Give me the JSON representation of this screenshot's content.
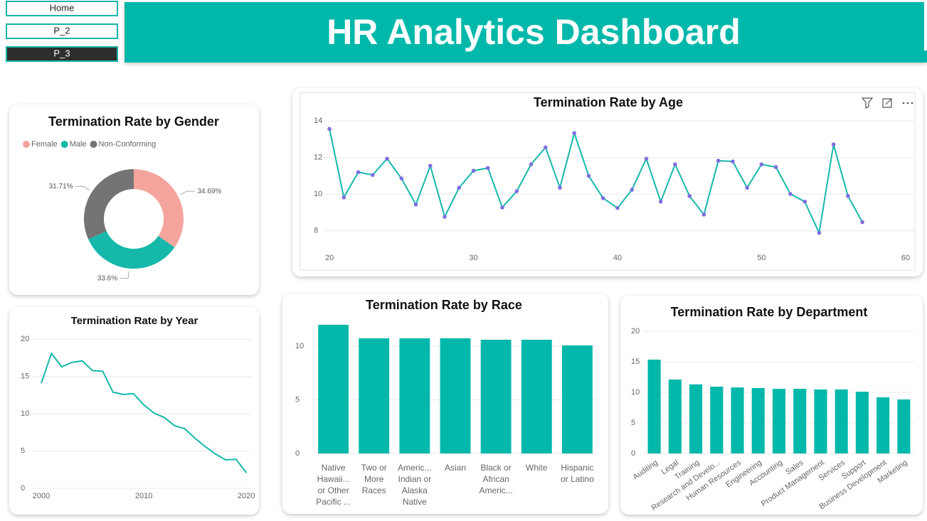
{
  "nav": [
    "Home",
    "P_2",
    "P_3"
  ],
  "header": {
    "title": "HR Analytics Dashboard"
  },
  "chart_data": [
    {
      "type": "pie",
      "title": "Termination Rate by Gender",
      "categories": [
        "Female",
        "Male",
        "Non-Conforming"
      ],
      "values": [
        34.69,
        33.6,
        31.71
      ],
      "value_labels": [
        "34.69%",
        "33.6%",
        "31.71%"
      ],
      "colors": [
        "#f4a49c",
        "#16b8aa",
        "#747474"
      ],
      "legend": "top-left",
      "donut": true
    },
    {
      "type": "line",
      "title": "Termination Rate by Age",
      "x": [
        20,
        21,
        22,
        23,
        24,
        25,
        26,
        27,
        28,
        29,
        30,
        31,
        32,
        33,
        34,
        35,
        36,
        37,
        38,
        39,
        40,
        41,
        42,
        43,
        44,
        45,
        46,
        47,
        48,
        49,
        50,
        51,
        52,
        53,
        54,
        55,
        56,
        57
      ],
      "values": [
        13.57,
        9.82,
        11.2,
        11.05,
        11.94,
        10.86,
        9.43,
        11.55,
        8.76,
        10.35,
        11.28,
        11.43,
        9.27,
        10.16,
        11.63,
        12.56,
        10.35,
        13.34,
        11.0,
        9.78,
        9.24,
        10.24,
        11.94,
        9.59,
        11.63,
        9.9,
        8.88,
        11.83,
        11.79,
        10.35,
        11.63,
        11.48,
        10.01,
        9.59,
        7.88,
        12.72,
        9.9,
        8.47
      ],
      "color": "#16b8aa",
      "markers": true,
      "marker_color": "#7f6fe0",
      "xlim": [
        19.6,
        60.6
      ],
      "xticks": [
        20,
        30,
        40,
        50,
        60
      ],
      "ylim": [
        7.4,
        14.4
      ],
      "yticks": [
        8,
        10,
        12,
        14
      ],
      "grid": true
    },
    {
      "type": "line",
      "title": "Termination Rate by Year",
      "x": [
        2000,
        2001,
        2002,
        2003,
        2004,
        2005,
        2006,
        2007,
        2008,
        2009,
        2010,
        2011,
        2012,
        2013,
        2014,
        2015,
        2016,
        2017,
        2018,
        2019,
        2020
      ],
      "values": [
        14.1,
        18.1,
        16.3,
        16.9,
        17.1,
        15.8,
        15.7,
        12.9,
        12.6,
        12.7,
        11.2,
        10.1,
        9.5,
        8.4,
        8.0,
        6.7,
        5.6,
        4.6,
        3.8,
        3.9,
        2.1
      ],
      "color": "#16b8aa",
      "markers": false,
      "xlim": [
        1999.1,
        2020.4
      ],
      "xticks": [
        2000,
        2010,
        2020
      ],
      "ylim": [
        0,
        20.7
      ],
      "yticks": [
        0,
        5,
        10,
        15,
        20
      ],
      "grid": true
    },
    {
      "type": "bar",
      "title": "Termination Rate by Race",
      "categories": [
        "Native Hawaii... or Other Pacific ...",
        "Two or More Races",
        "Americ... Indian or Alaska Native",
        "Asian",
        "Black or African Americ...",
        "White",
        "Hispanic or Latino"
      ],
      "values": [
        11.99,
        10.73,
        10.73,
        10.73,
        10.6,
        10.6,
        10.07
      ],
      "color": "#01b8aa",
      "ylim": [
        0,
        12.45
      ],
      "yticks": [
        0,
        5,
        10
      ],
      "grid": true,
      "label_rotation": 0
    },
    {
      "type": "bar",
      "title": "Termination Rate by Department",
      "categories": [
        "Auditing",
        "Legal",
        "Training",
        "Research and Develo...",
        "Human Resources",
        "Engineering",
        "Accounting",
        "Sales",
        "Product Management",
        "Services",
        "Support",
        "Business Development",
        "Marketing"
      ],
      "values": [
        15.35,
        12.1,
        11.3,
        10.93,
        10.8,
        10.7,
        10.58,
        10.58,
        10.47,
        10.47,
        10.1,
        9.19,
        8.84
      ],
      "color": "#01b8aa",
      "ylim": [
        0,
        20
      ],
      "yticks": [
        0,
        5,
        10,
        15,
        20
      ],
      "grid": true,
      "label_rotation": -35
    }
  ]
}
